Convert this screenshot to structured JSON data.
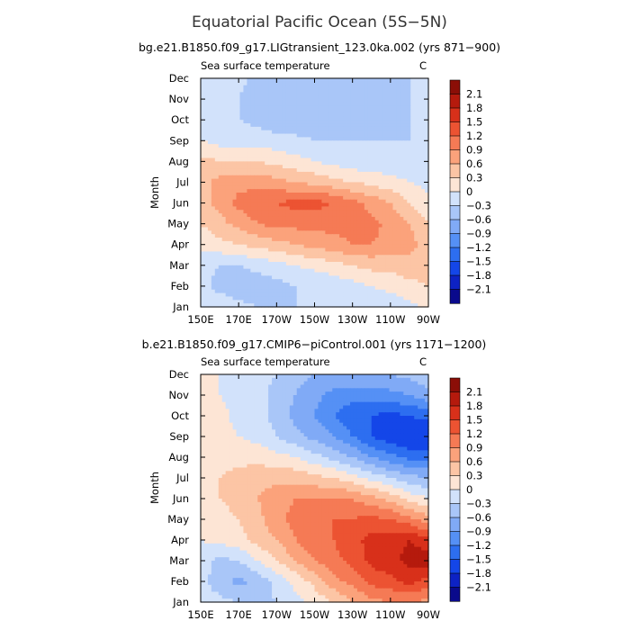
{
  "main_title": "Equatorial Pacific Ocean (5S−5N)",
  "palette": [
    "#0a0a8c",
    "#0d22c4",
    "#1446e8",
    "#2d6ef0",
    "#5590f5",
    "#80aaf6",
    "#a9c6f8",
    "#d2e2fb",
    "#fde5d5",
    "#fcc5a5",
    "#fba27b",
    "#f57a55",
    "#ec5332",
    "#d8301a",
    "#b51a0d",
    "#8b0e07"
  ],
  "chart_data": [
    {
      "type": "heatmap",
      "run_title": "bg.e21.B1850.f09_g17.LIGtransient_123.0ka.002 (yrs 871−900)",
      "variable": "Sea surface temperature",
      "units": "C",
      "ylabel": "Month",
      "x_ticks": [
        "150E",
        "170E",
        "170W",
        "150W",
        "130W",
        "110W",
        "90W"
      ],
      "y_ticks": [
        "Jan",
        "Feb",
        "Mar",
        "Apr",
        "May",
        "Jun",
        "Jul",
        "Aug",
        "Sep",
        "Oct",
        "Nov",
        "Dec"
      ],
      "levels": [
        "2.1",
        "1.8",
        "1.5",
        "1.2",
        "0.9",
        "0.6",
        "0.3",
        "0",
        "−0.3",
        "−0.6",
        "−0.9",
        "−1.2",
        "−1.5",
        "−1.8",
        "−2.1"
      ],
      "x": [
        150,
        160,
        170,
        180,
        190,
        200,
        210,
        220,
        230,
        240,
        250,
        260,
        270
      ],
      "values": [
        [
          -0.1,
          -0.1,
          -0.2,
          -0.3,
          -0.3,
          -0.3,
          -0.3,
          -0.3,
          -0.3,
          -0.3,
          -0.2,
          -0.1,
          0.1
        ],
        [
          -0.2,
          -0.4,
          -0.5,
          -0.5,
          -0.4,
          -0.3,
          -0.3,
          -0.2,
          -0.1,
          0.0,
          0.1,
          0.2,
          0.3
        ],
        [
          -0.2,
          -0.3,
          -0.3,
          -0.2,
          -0.1,
          0.0,
          0.1,
          0.2,
          0.3,
          0.4,
          0.4,
          0.5,
          0.4
        ],
        [
          0.1,
          0.2,
          0.3,
          0.4,
          0.5,
          0.6,
          0.7,
          0.8,
          0.9,
          0.9,
          0.8,
          0.7,
          0.5
        ],
        [
          0.3,
          0.5,
          0.7,
          0.9,
          1.0,
          1.0,
          1.0,
          1.0,
          1.0,
          1.0,
          0.8,
          0.6,
          0.3
        ],
        [
          0.5,
          0.7,
          1.0,
          1.1,
          1.2,
          1.3,
          1.3,
          1.2,
          1.0,
          0.8,
          0.6,
          0.3,
          0.1
        ],
        [
          0.5,
          0.7,
          0.8,
          0.8,
          0.7,
          0.6,
          0.5,
          0.4,
          0.3,
          0.2,
          0.1,
          0.0,
          -0.1
        ],
        [
          0.4,
          0.3,
          0.3,
          0.3,
          0.2,
          0.1,
          0.0,
          -0.1,
          -0.2,
          -0.2,
          -0.2,
          -0.2,
          -0.2
        ],
        [
          0.0,
          -0.1,
          -0.1,
          -0.1,
          -0.2,
          -0.2,
          -0.3,
          -0.3,
          -0.3,
          -0.3,
          -0.3,
          -0.3,
          -0.3
        ],
        [
          -0.1,
          -0.2,
          -0.3,
          -0.4,
          -0.5,
          -0.6,
          -0.6,
          -0.6,
          -0.6,
          -0.5,
          -0.4,
          -0.3,
          -0.3
        ],
        [
          0.0,
          -0.1,
          -0.3,
          -0.5,
          -0.6,
          -0.6,
          -0.6,
          -0.6,
          -0.6,
          -0.5,
          -0.4,
          -0.3,
          -0.3
        ],
        [
          0.0,
          -0.1,
          -0.2,
          -0.4,
          -0.5,
          -0.5,
          -0.5,
          -0.5,
          -0.5,
          -0.5,
          -0.4,
          -0.3,
          -0.2
        ]
      ]
    },
    {
      "type": "heatmap",
      "run_title": "b.e21.B1850.f09_g17.CMIP6−piControl.001 (yrs 1171−1200)",
      "variable": "Sea surface temperature",
      "units": "C",
      "ylabel": "Month",
      "x_ticks": [
        "150E",
        "170E",
        "170W",
        "150W",
        "130W",
        "110W",
        "90W"
      ],
      "y_ticks": [
        "Jan",
        "Feb",
        "Mar",
        "Apr",
        "May",
        "Jun",
        "Jul",
        "Aug",
        "Sep",
        "Oct",
        "Nov",
        "Dec"
      ],
      "levels": [
        "2.1",
        "1.8",
        "1.5",
        "1.2",
        "0.9",
        "0.6",
        "0.3",
        "0",
        "−0.3",
        "−0.6",
        "−0.9",
        "−1.2",
        "−1.5",
        "−1.8",
        "−2.1"
      ],
      "x": [
        150,
        160,
        170,
        180,
        190,
        200,
        210,
        220,
        230,
        240,
        250,
        260,
        270
      ],
      "values": [
        [
          -0.1,
          -0.2,
          -0.3,
          -0.4,
          -0.3,
          -0.1,
          0.1,
          0.3,
          0.6,
          0.8,
          0.9,
          0.9,
          0.8
        ],
        [
          -0.2,
          -0.5,
          -0.7,
          -0.5,
          -0.2,
          0.1,
          0.4,
          0.8,
          1.0,
          1.3,
          1.4,
          1.6,
          1.4
        ],
        [
          -0.1,
          -0.4,
          -0.3,
          0.0,
          0.3,
          0.6,
          0.9,
          1.1,
          1.3,
          1.6,
          1.7,
          1.9,
          2.0
        ],
        [
          0.0,
          0.1,
          0.2,
          0.4,
          0.6,
          0.9,
          1.1,
          1.2,
          1.4,
          1.6,
          1.7,
          1.8,
          1.6
        ],
        [
          0.1,
          0.2,
          0.3,
          0.5,
          0.8,
          1.0,
          1.1,
          1.2,
          1.2,
          1.3,
          1.2,
          1.0,
          0.7
        ],
        [
          0.2,
          0.3,
          0.4,
          0.6,
          0.8,
          0.9,
          0.9,
          0.9,
          0.9,
          0.7,
          0.5,
          0.2,
          0.0
        ],
        [
          0.2,
          0.3,
          0.4,
          0.5,
          0.5,
          0.5,
          0.4,
          0.3,
          0.1,
          -0.1,
          -0.3,
          -0.5,
          -0.6
        ],
        [
          0.1,
          0.2,
          0.2,
          0.2,
          0.1,
          0.0,
          -0.2,
          -0.4,
          -0.6,
          -0.9,
          -1.1,
          -1.3,
          -1.3
        ],
        [
          0.0,
          0.1,
          0.0,
          -0.1,
          -0.3,
          -0.5,
          -0.7,
          -0.9,
          -1.2,
          -1.5,
          -1.7,
          -1.8,
          -1.8
        ],
        [
          0.0,
          0.1,
          -0.1,
          -0.2,
          -0.4,
          -0.7,
          -0.9,
          -1.2,
          -1.4,
          -1.5,
          -1.6,
          -1.5,
          -1.4
        ],
        [
          0.0,
          0.0,
          -0.1,
          -0.2,
          -0.4,
          -0.6,
          -0.8,
          -1.0,
          -1.1,
          -1.1,
          -1.0,
          -0.9,
          -0.7
        ],
        [
          0.0,
          0.0,
          -0.1,
          -0.2,
          -0.3,
          -0.5,
          -0.6,
          -0.6,
          -0.6,
          -0.6,
          -0.6,
          -0.5,
          -0.4
        ]
      ]
    }
  ]
}
